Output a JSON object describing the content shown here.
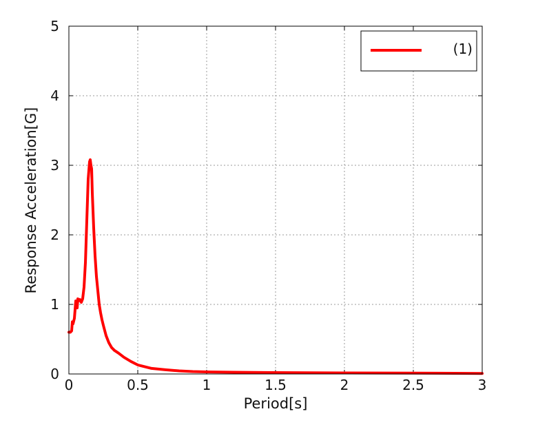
{
  "chart_data": {
    "type": "line",
    "xlabel": "Period[s]",
    "ylabel": "Response Acceleration[G]",
    "xlim": [
      0,
      3
    ],
    "ylim": [
      0,
      5
    ],
    "x_ticks": [
      0,
      0.5,
      1,
      1.5,
      2,
      2.5,
      3
    ],
    "x_tick_labels": [
      "0",
      "0.5",
      "1",
      "1.5",
      "2",
      "2.5",
      "3"
    ],
    "y_ticks": [
      0,
      1,
      2,
      3,
      4,
      5
    ],
    "y_tick_labels": [
      "0",
      "1",
      "2",
      "3",
      "4",
      "5"
    ],
    "grid": true,
    "legend_position": "top-right",
    "series": [
      {
        "name": "(1)",
        "color": "#ff0000",
        "x": [
          0,
          0.01,
          0.02,
          0.025,
          0.03,
          0.04,
          0.05,
          0.06,
          0.065,
          0.07,
          0.08,
          0.09,
          0.1,
          0.11,
          0.12,
          0.13,
          0.14,
          0.15,
          0.155,
          0.16,
          0.165,
          0.17,
          0.18,
          0.19,
          0.2,
          0.21,
          0.22,
          0.23,
          0.24,
          0.25,
          0.27,
          0.29,
          0.31,
          0.33,
          0.36,
          0.4,
          0.45,
          0.5,
          0.6,
          0.7,
          0.8,
          0.9,
          1,
          1.2,
          1.5,
          2,
          2.5,
          2.8,
          3
        ],
        "y": [
          0.6,
          0.6,
          0.62,
          0.75,
          0.72,
          0.8,
          1.05,
          0.95,
          1.08,
          1.05,
          1.07,
          1.03,
          1.08,
          1.25,
          1.6,
          2.2,
          2.8,
          3.05,
          3.08,
          3.0,
          2.95,
          2.6,
          2.1,
          1.7,
          1.4,
          1.2,
          1.0,
          0.88,
          0.78,
          0.7,
          0.55,
          0.45,
          0.38,
          0.34,
          0.3,
          0.24,
          0.18,
          0.13,
          0.08,
          0.06,
          0.045,
          0.035,
          0.03,
          0.025,
          0.02,
          0.015,
          0.012,
          0.01,
          0.008
        ]
      }
    ]
  }
}
